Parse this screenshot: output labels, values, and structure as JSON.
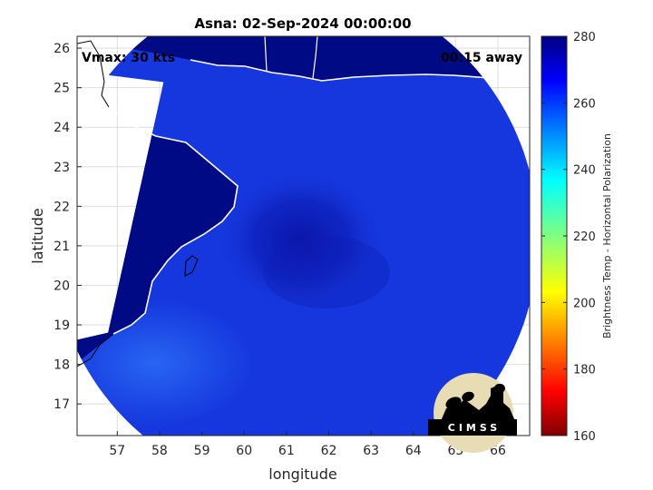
{
  "chart_data": {
    "type": "heatmap",
    "title": "Asna: 02-Sep-2024 00:00:00",
    "xlabel": "longitude",
    "ylabel": "latitude",
    "xlim": [
      56.05,
      66.75
    ],
    "ylim": [
      16.2,
      26.3
    ],
    "xticks": [
      57,
      58,
      59,
      60,
      61,
      62,
      63,
      64,
      65,
      66
    ],
    "yticks": [
      17,
      18,
      19,
      20,
      21,
      22,
      23,
      24,
      25,
      26
    ],
    "grid": true,
    "annotations": {
      "vmax": "Vmax: 30 kts",
      "time_offset": "00:15 away"
    },
    "colorbar": {
      "label": "Brightness Temp - Horizontal Polarization",
      "range": [
        160,
        280
      ],
      "ticks": [
        160,
        180,
        200,
        220,
        240,
        260,
        280
      ],
      "colormap": "jet"
    },
    "field": {
      "center": [
        61.2,
        21.2
      ],
      "swath_radius_deg": 5.75,
      "land_temp": 276,
      "ocean_temp_range": [
        258,
        266
      ]
    },
    "logo": "CIMSS"
  }
}
